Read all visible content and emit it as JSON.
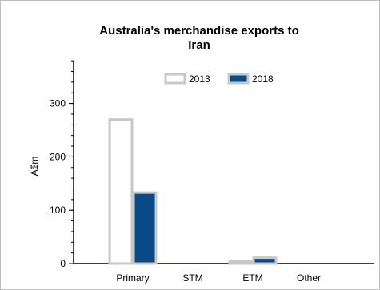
{
  "chart_data": {
    "type": "bar",
    "title_lines": [
      "Australia's merchandise exports to",
      "Iran"
    ],
    "ylabel": "A$m",
    "xlabel": "",
    "categories": [
      "Primary",
      "STM",
      "ETM",
      "Other"
    ],
    "series": [
      {
        "name": "2013",
        "values": [
          270,
          0,
          4,
          0
        ],
        "fill": "#ffffff",
        "stroke": "#c8c8c8"
      },
      {
        "name": "2018",
        "values": [
          133,
          0,
          11,
          0
        ],
        "fill": "#0a4a87",
        "stroke": "#c8c8c8"
      }
    ],
    "ylim": [
      0,
      380
    ],
    "yticks": [
      0,
      100,
      200,
      300
    ],
    "minor_tick_step": 20,
    "grid": false,
    "legend_position": "top-center"
  }
}
